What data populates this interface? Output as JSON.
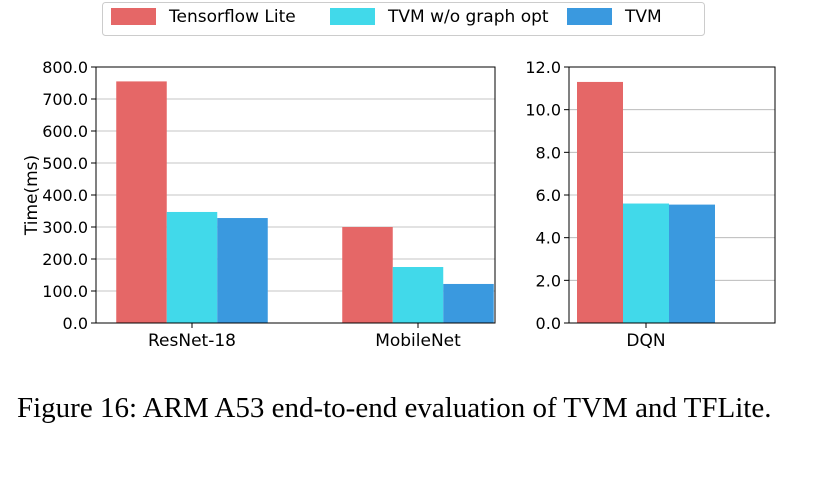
{
  "chart_data": [
    {
      "type": "bar",
      "categories": [
        "ResNet-18",
        "MobileNet"
      ],
      "series": [
        {
          "name": "Tensorflow Lite",
          "values": [
            755.0,
            300.0
          ]
        },
        {
          "name": "TVM w/o graph opt",
          "values": [
            347.0,
            175.0
          ]
        },
        {
          "name": "TVM",
          "values": [
            328.0,
            122.0
          ]
        }
      ],
      "ylabel": "Time(ms)",
      "ylim": [
        0,
        800
      ],
      "yticks": [
        "0.0",
        "100.0",
        "200.0",
        "300.0",
        "400.0",
        "500.0",
        "600.0",
        "700.0",
        "800.0"
      ],
      "grid": true
    },
    {
      "type": "bar",
      "categories": [
        "DQN"
      ],
      "series": [
        {
          "name": "Tensorflow Lite",
          "values": [
            11.3
          ]
        },
        {
          "name": "TVM w/o graph opt",
          "values": [
            5.6
          ]
        },
        {
          "name": "TVM",
          "values": [
            5.55
          ]
        }
      ],
      "ylabel": "",
      "ylim": [
        0,
        12
      ],
      "yticks": [
        "0.0",
        "2.0",
        "4.0",
        "6.0",
        "8.0",
        "10.0",
        "12.0"
      ],
      "grid": true
    }
  ],
  "legend": {
    "placement": "top",
    "entries": [
      {
        "label": "Tensorflow Lite",
        "color": "#e56767"
      },
      {
        "label": "TVM w/o graph opt",
        "color": "#41d9ea"
      },
      {
        "label": "TVM",
        "color": "#3a99df"
      }
    ]
  },
  "colors": {
    "tflite": "#e56767",
    "tvm_no_graph": "#41d9ea",
    "tvm": "#3a99df"
  },
  "caption": "Figure 16:  ARM A53 end-to-end evaluation of TVM and TFLite."
}
